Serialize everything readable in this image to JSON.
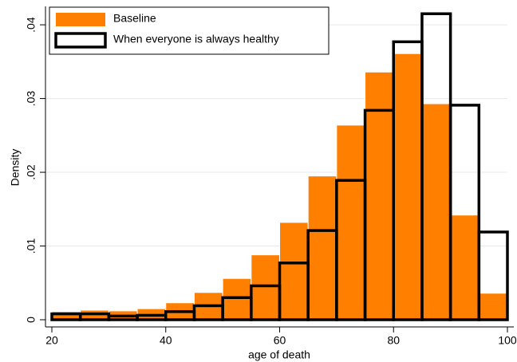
{
  "chart_data": {
    "type": "histogram",
    "x_label": "age of death",
    "y_label": "Density",
    "bins": [
      20,
      25,
      30,
      35,
      40,
      45,
      50,
      55,
      60,
      65,
      70,
      75,
      80,
      85,
      90,
      95,
      100
    ],
    "series": [
      {
        "name": "Baseline",
        "color": "#ff7f00",
        "style": "filled",
        "values": [
          0.0011,
          0.0013,
          0.0012,
          0.0015,
          0.0023,
          0.0037,
          0.0056,
          0.0088,
          0.0132,
          0.0195,
          0.0264,
          0.0336,
          0.0361,
          0.0293,
          0.0142,
          0.0036
        ]
      },
      {
        "name": "When everyone is always healthy",
        "color": "#000000",
        "style": "outline",
        "values": [
          0.0008,
          0.0008,
          0.0005,
          0.0006,
          0.0011,
          0.0019,
          0.003,
          0.0046,
          0.0077,
          0.0121,
          0.0189,
          0.0284,
          0.0377,
          0.0415,
          0.0291,
          0.0119
        ]
      }
    ],
    "xlim": [
      20,
      100
    ],
    "xticks": [
      20,
      40,
      60,
      80,
      100
    ],
    "ylim": [
      0,
      0.0425
    ],
    "yticks": [
      0,
      {
        "value": 0.01,
        "label": ".01"
      },
      {
        "value": 0.02,
        "label": ".02"
      },
      {
        "value": 0.03,
        "label": ".03"
      },
      {
        "value": 0.04,
        "label": ".04"
      }
    ],
    "grid": true,
    "legend": "top-left"
  }
}
